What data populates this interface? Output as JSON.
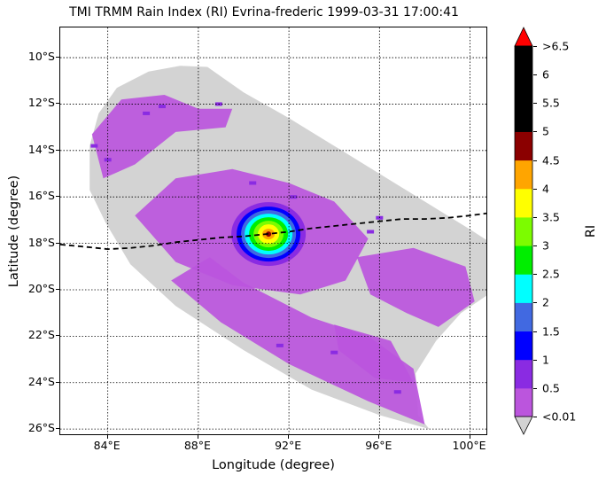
{
  "title": "TMI TRMM Rain Index (RI) Evrina-frederic 1999-03-31 17:00:41",
  "map": {
    "xlabel": "Longitude (degree)",
    "ylabel": "Latitude (degree)",
    "lon_range": [
      81.9,
      100.8
    ],
    "lat_range": [
      -26.3,
      -8.7
    ],
    "lon_ticks": [
      {
        "value": 84,
        "label": "84°E"
      },
      {
        "value": 88,
        "label": "88°E"
      },
      {
        "value": 92,
        "label": "92°E"
      },
      {
        "value": 96,
        "label": "96°E"
      },
      {
        "value": 100,
        "label": "100°E"
      }
    ],
    "lat_ticks": [
      {
        "value": -10,
        "label": "10°S"
      },
      {
        "value": -12,
        "label": "12°S"
      },
      {
        "value": -14,
        "label": "14°S"
      },
      {
        "value": -16,
        "label": "16°S"
      },
      {
        "value": -18,
        "label": "18°S"
      },
      {
        "value": -20,
        "label": "20°S"
      },
      {
        "value": -22,
        "label": "22°S"
      },
      {
        "value": -24,
        "label": "24°S"
      },
      {
        "value": -26,
        "label": "26°S"
      }
    ],
    "grid": true,
    "swath_color": "#d3d3d3",
    "storm_center": {
      "lon": 91.1,
      "lat": -17.6
    },
    "track": [
      [
        81.9,
        -18.05
      ],
      [
        83.0,
        -18.15
      ],
      [
        84.0,
        -18.25
      ],
      [
        85.0,
        -18.2
      ],
      [
        86.0,
        -18.1
      ],
      [
        87.0,
        -17.95
      ],
      [
        88.0,
        -17.85
      ],
      [
        89.0,
        -17.75
      ],
      [
        90.0,
        -17.7
      ],
      [
        91.0,
        -17.6
      ],
      [
        92.0,
        -17.5
      ],
      [
        93.0,
        -17.35
      ],
      [
        94.0,
        -17.25
      ],
      [
        95.0,
        -17.15
      ],
      [
        96.0,
        -17.05
      ],
      [
        97.0,
        -16.95
      ],
      [
        98.0,
        -16.95
      ],
      [
        99.0,
        -16.9
      ],
      [
        100.0,
        -16.8
      ],
      [
        100.8,
        -16.7
      ]
    ]
  },
  "colorbar": {
    "label": "RI",
    "ticks": [
      "<0.01",
      "0.5",
      "1",
      "1.5",
      "2",
      "2.5",
      "3",
      "3.5",
      "4",
      "4.5",
      "5",
      "5.5",
      "6",
      ">6.5"
    ],
    "colors": [
      "#bb55dd",
      "#8a2be2",
      "#0000ff",
      "#4169e1",
      "#00ffff",
      "#00ee00",
      "#7cfc00",
      "#ffff00",
      "#ffa500",
      "#8b0000",
      "#000000",
      "#000000",
      "#000000"
    ],
    "under_color": "#d3d3d3",
    "over_color": "#ff0000"
  }
}
